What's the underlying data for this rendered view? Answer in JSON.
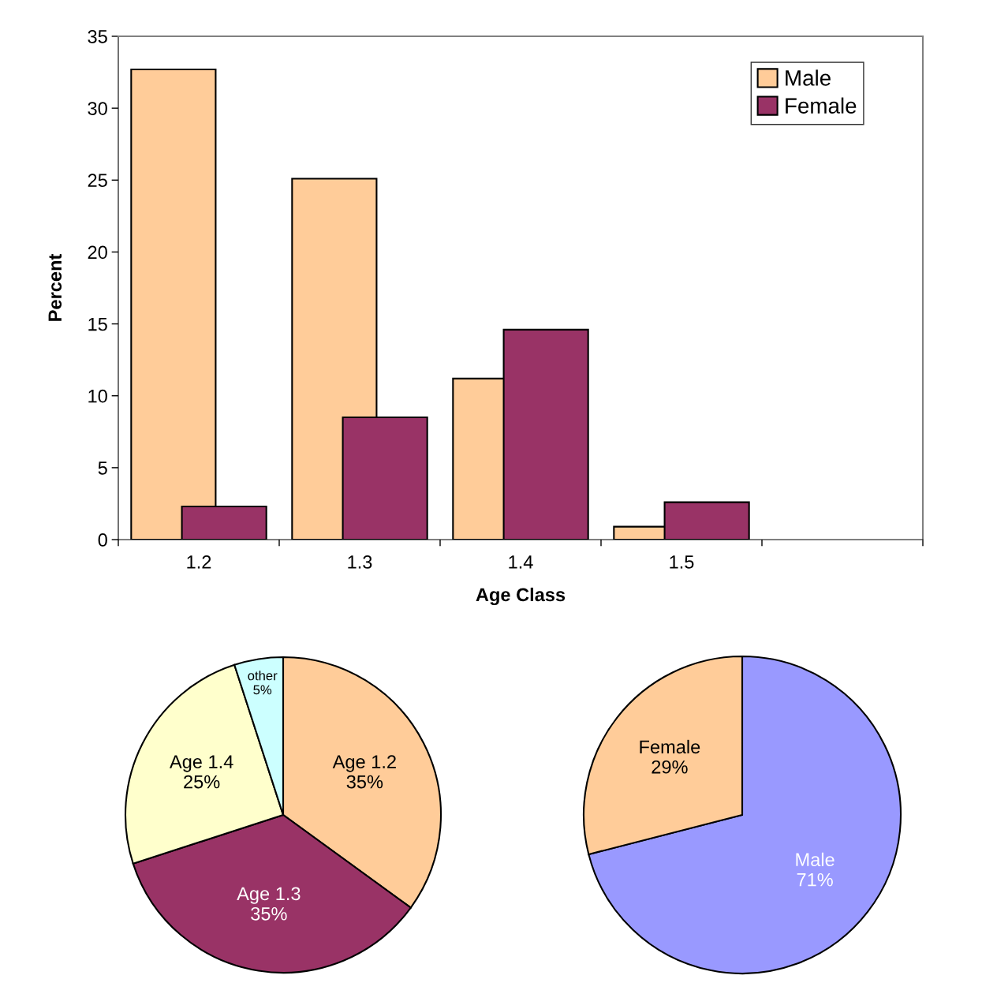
{
  "chart_data": [
    {
      "type": "bar",
      "xlabel": "Age Class",
      "ylabel": "Percent",
      "categories": [
        "1.2",
        "1.3",
        "1.4",
        "1.5",
        null
      ],
      "series": [
        {
          "name": "Male",
          "color": "#ffcc99",
          "values": [
            32.7,
            25.1,
            11.2,
            0.9,
            null
          ]
        },
        {
          "name": "Female",
          "color": "#993366",
          "values": [
            2.3,
            8.5,
            14.6,
            2.6,
            null
          ]
        }
      ],
      "ylim": [
        0,
        35
      ],
      "yticks": [
        0,
        5,
        10,
        15,
        20,
        25,
        30,
        35
      ],
      "grid": false,
      "legend": "top right"
    },
    {
      "type": "pie",
      "categories": [
        "Age 1.2",
        "Age 1.3",
        "Age 1.4",
        "other"
      ],
      "values": [
        35,
        35,
        25,
        5
      ],
      "value_labels": [
        "35%",
        "35%",
        "25%",
        "5%"
      ],
      "colors": [
        "#ffcc99",
        "#993366",
        "#ffffcc",
        "#ccffff"
      ]
    },
    {
      "type": "pie",
      "categories": [
        "Male",
        "Female"
      ],
      "values": [
        71,
        29
      ],
      "value_labels": [
        "71%",
        "29%"
      ],
      "colors": [
        "#9999ff",
        "#ffcc99"
      ]
    }
  ]
}
